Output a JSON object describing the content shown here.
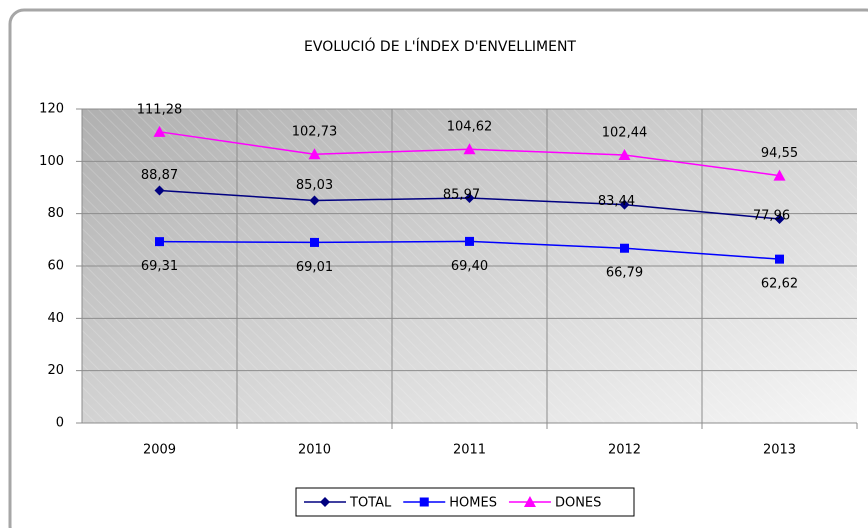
{
  "chart_data": {
    "type": "line",
    "title": "EVOLUCIÓ DE L'ÍNDEX D'ENVELLIMENT",
    "categories": [
      "2009",
      "2010",
      "2011",
      "2012",
      "2013"
    ],
    "series": [
      {
        "name": "TOTAL",
        "color": "#000080",
        "marker": "diamond",
        "values": [
          88.87,
          85.03,
          85.97,
          83.44,
          77.96
        ],
        "value_labels": [
          "88,87",
          "85,03",
          "85,97",
          "83,44",
          "77,96"
        ]
      },
      {
        "name": "HOMES",
        "color": "#0000ff",
        "marker": "square",
        "values": [
          69.31,
          69.01,
          69.4,
          66.79,
          62.62
        ],
        "value_labels": [
          "69,31",
          "69,01",
          "69,40",
          "66,79",
          "62,62"
        ]
      },
      {
        "name": "DONES",
        "color": "#ff00ff",
        "marker": "triangle",
        "values": [
          111.28,
          102.73,
          104.62,
          102.44,
          94.55
        ],
        "value_labels": [
          "111,28",
          "102,73",
          "104,62",
          "102,44",
          "94,55"
        ]
      }
    ],
    "ylim": [
      0,
      120
    ],
    "yticks": [
      0,
      20,
      40,
      60,
      80,
      100,
      120
    ],
    "grid": true,
    "legend": "bottom"
  }
}
